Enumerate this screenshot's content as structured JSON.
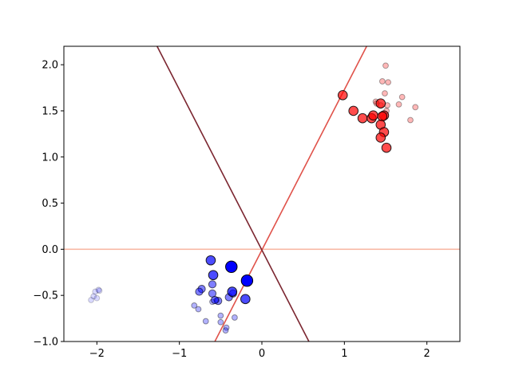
{
  "chart_data": {
    "type": "scatter",
    "title": "",
    "xlabel": "",
    "ylabel": "",
    "xlim": [
      -2.4,
      2.4
    ],
    "ylim": [
      -1.0,
      2.2
    ],
    "grid": false,
    "legend": "none",
    "x_ticks": [
      -2,
      -1,
      0,
      1,
      2
    ],
    "y_ticks": [
      -1.0,
      -0.5,
      0.0,
      0.5,
      1.0,
      1.5,
      2.0
    ],
    "x_tick_labels": [
      "−2",
      "−1",
      "0",
      "1",
      "2"
    ],
    "y_tick_labels": [
      "−1.0",
      "−0.5",
      "0.0",
      "0.5",
      "1.0",
      "1.5",
      "2.0"
    ],
    "lines": [
      {
        "color": "#f7b39e",
        "points": [
          [
            -2.4,
            0.0
          ],
          [
            2.4,
            0.0
          ]
        ]
      },
      {
        "color": "#e0524a",
        "points": [
          [
            -0.57,
            -1.0
          ],
          [
            1.27,
            2.2
          ]
        ]
      },
      {
        "color": "#7b2630",
        "points": [
          [
            -1.27,
            2.2
          ],
          [
            0.57,
            -1.0
          ]
        ]
      }
    ],
    "series": [
      {
        "color": "#ff0000",
        "fill_alpha": 0.28,
        "edge_alpha": 0.35,
        "size": "small",
        "points": [
          [
            1.5,
            1.99
          ],
          [
            1.46,
            1.82
          ],
          [
            1.53,
            1.81
          ],
          [
            1.49,
            1.69
          ],
          [
            1.7,
            1.65
          ],
          [
            1.52,
            1.56
          ],
          [
            1.66,
            1.57
          ],
          [
            1.86,
            1.54
          ],
          [
            1.38,
            1.6
          ],
          [
            1.44,
            1.56
          ],
          [
            1.51,
            1.5
          ],
          [
            1.48,
            1.43
          ],
          [
            1.8,
            1.4
          ],
          [
            1.39,
            1.58
          ]
        ]
      },
      {
        "color": "#ff0000",
        "fill_alpha": 0.7,
        "edge_alpha": 0.85,
        "size": "large",
        "points": [
          [
            0.98,
            1.67
          ],
          [
            1.11,
            1.5
          ],
          [
            1.22,
            1.42
          ],
          [
            1.33,
            1.42
          ],
          [
            1.35,
            1.45
          ],
          [
            1.44,
            1.58
          ],
          [
            1.48,
            1.45
          ],
          [
            1.46,
            1.44
          ],
          [
            1.44,
            1.35
          ],
          [
            1.48,
            1.27
          ],
          [
            1.44,
            1.21
          ],
          [
            1.51,
            1.1
          ]
        ]
      },
      {
        "color": "#0000ff",
        "fill_alpha": 0.15,
        "edge_alpha": 0.2,
        "size": "small",
        "points": [
          [
            -2.02,
            -0.46
          ],
          [
            -1.97,
            -0.45
          ],
          [
            -2.04,
            -0.51
          ],
          [
            -2.0,
            -0.53
          ],
          [
            -2.07,
            -0.55
          ],
          [
            -1.98,
            -0.44
          ]
        ]
      },
      {
        "color": "#0000ff",
        "fill_alpha": 0.3,
        "edge_alpha": 0.4,
        "size": "small",
        "points": [
          [
            -0.82,
            -0.61
          ],
          [
            -0.77,
            -0.65
          ],
          [
            -0.68,
            -0.78
          ],
          [
            -0.5,
            -0.72
          ],
          [
            -0.5,
            -0.79
          ],
          [
            -0.43,
            -0.85
          ],
          [
            -0.44,
            -0.88
          ],
          [
            -0.33,
            -0.74
          ],
          [
            -0.6,
            -0.57
          ],
          [
            -0.55,
            -0.55
          ]
        ]
      },
      {
        "color": "#0000ff",
        "fill_alpha": 0.5,
        "edge_alpha": 0.6,
        "size": "medium",
        "points": [
          [
            -0.73,
            -0.43
          ],
          [
            -0.76,
            -0.46
          ],
          [
            -0.6,
            -0.38
          ],
          [
            -0.6,
            -0.48
          ],
          [
            -0.53,
            -0.56
          ],
          [
            -0.57,
            -0.55
          ],
          [
            -0.4,
            -0.52
          ],
          [
            -0.35,
            -0.48
          ]
        ]
      },
      {
        "color": "#0000ff",
        "fill_alpha": 0.7,
        "edge_alpha": 0.85,
        "size": "large",
        "points": [
          [
            -0.62,
            -0.12
          ],
          [
            -0.59,
            -0.28
          ],
          [
            -0.36,
            -0.46
          ],
          [
            -0.2,
            -0.54
          ]
        ]
      },
      {
        "color": "#0000ff",
        "fill_alpha": 1.0,
        "edge_alpha": 1.0,
        "size": "xlarge",
        "points": [
          [
            -0.37,
            -0.19
          ],
          [
            -0.18,
            -0.34
          ]
        ]
      }
    ]
  }
}
